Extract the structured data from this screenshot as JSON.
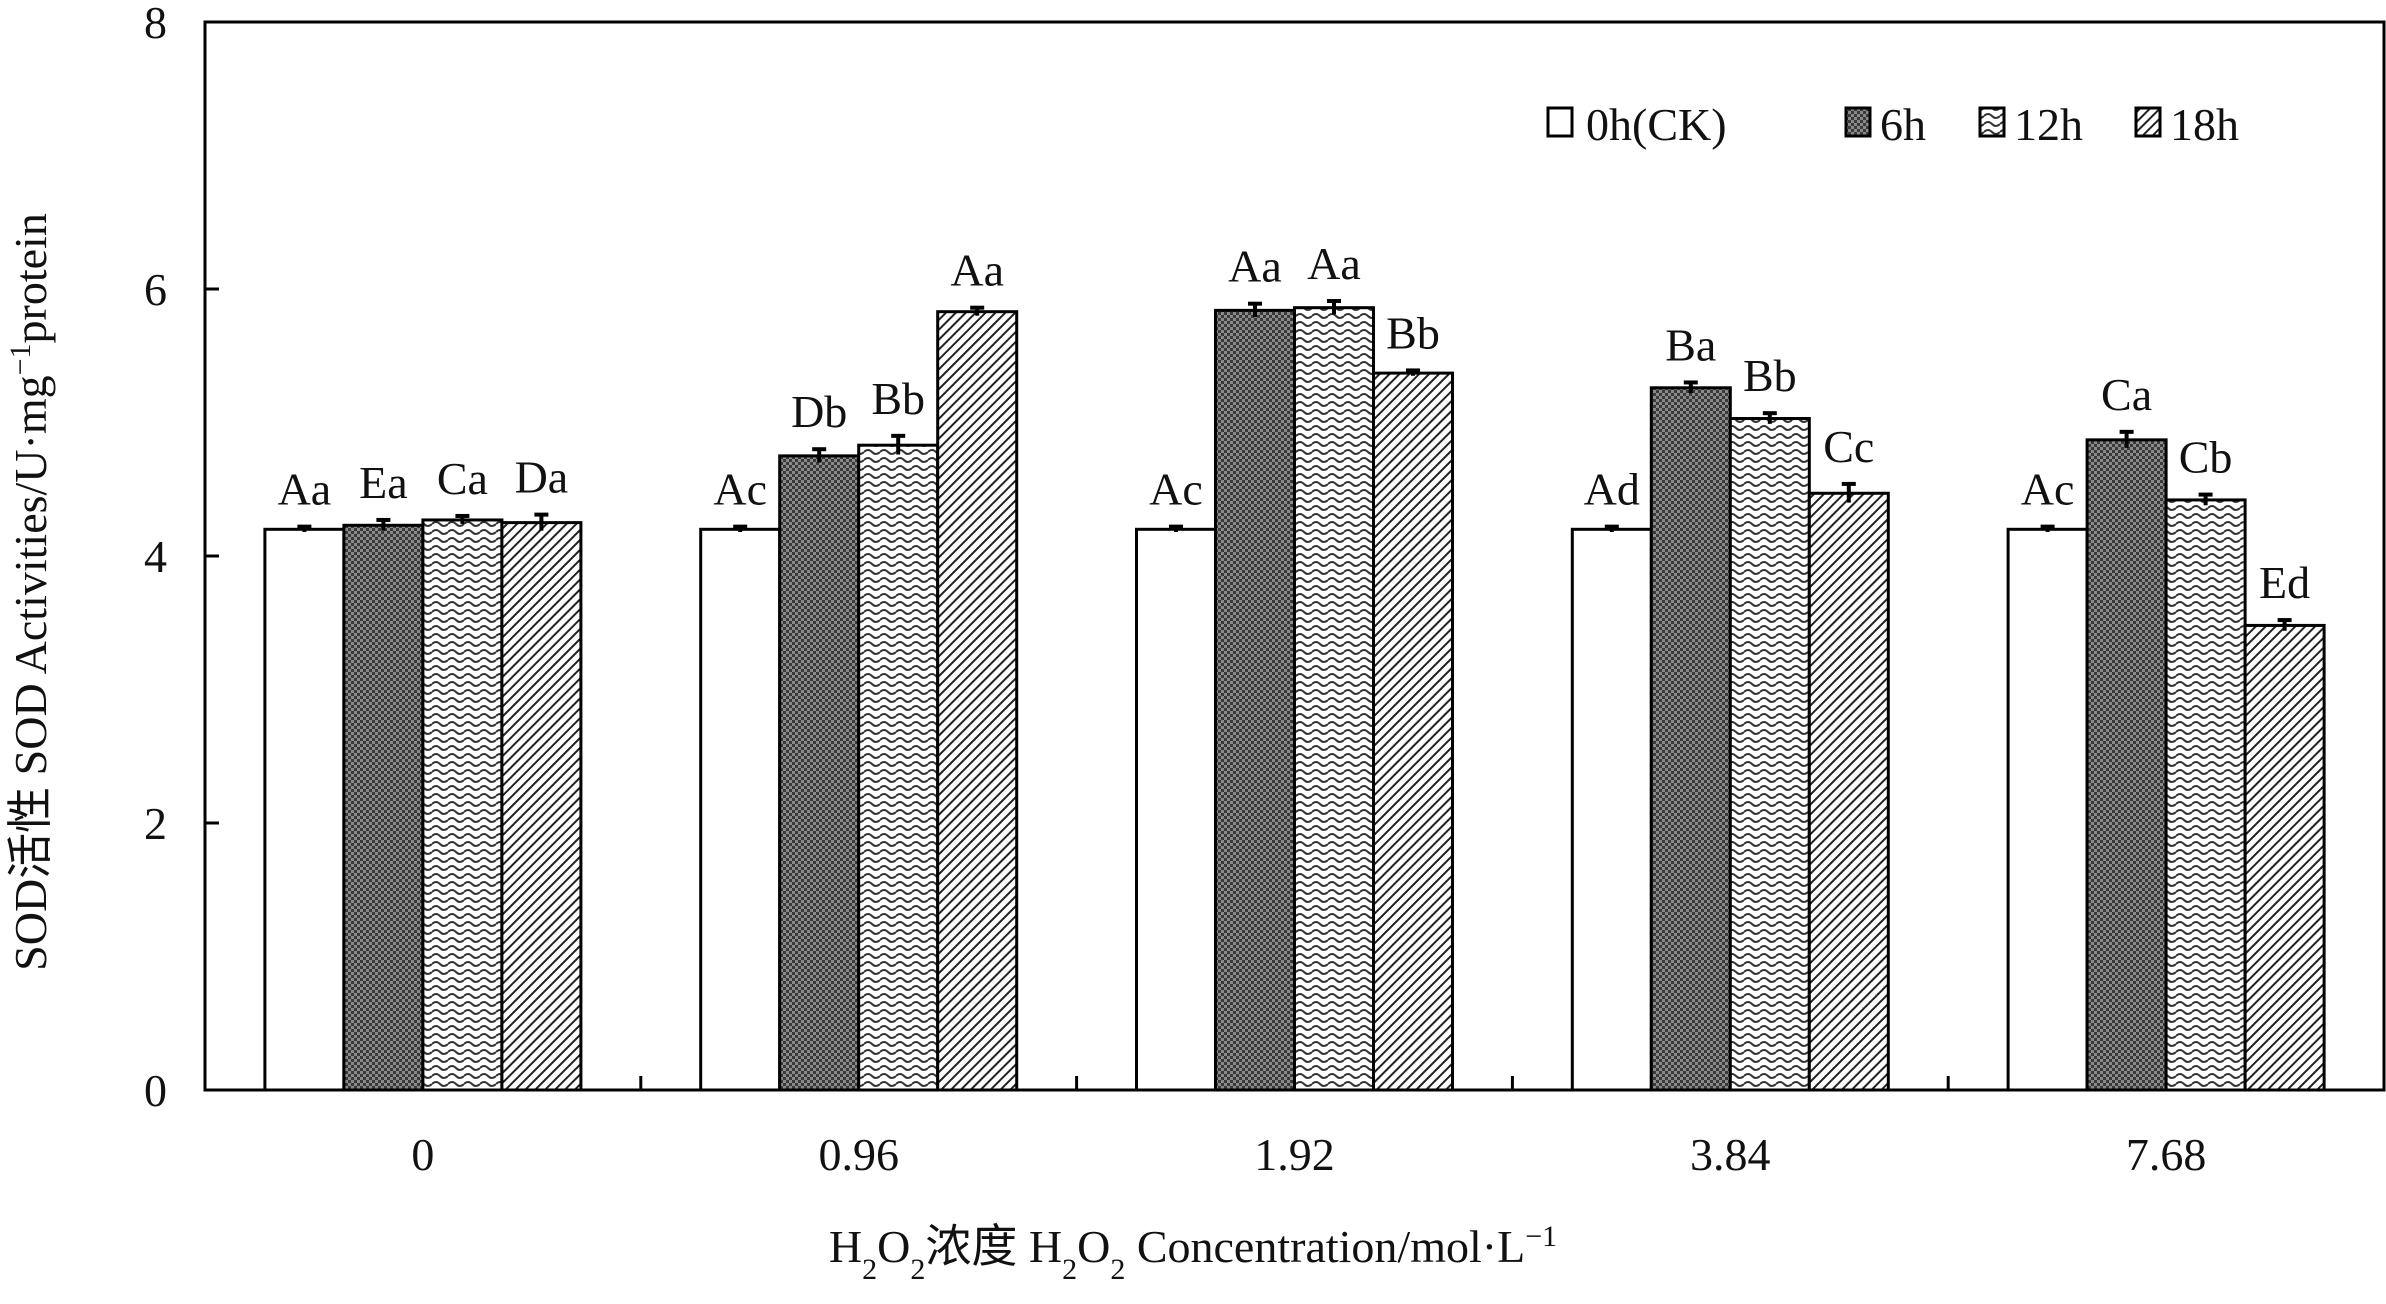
{
  "chart_data": {
    "type": "bar",
    "xlabel": {
      "prefix": "H",
      "sub1": "2",
      "mid1": "O",
      "sub2": "2",
      "cn": "浓度 H",
      "sub3": "2",
      "mid2": "O",
      "sub4": "2",
      "rest": " Concentration/mol·L",
      "sup": "−1"
    },
    "ylabel": {
      "text": "SOD活性 SOD Activities/U·mg",
      "sup": "−1",
      "rest": "protein"
    },
    "ylim": [
      0,
      8
    ],
    "yticks": [
      "0",
      "2",
      "4",
      "6",
      "8"
    ],
    "categories": [
      "0",
      "0.96",
      "1.92",
      "3.84",
      "7.68"
    ],
    "legend_position": "top-right",
    "series": [
      {
        "name": "0h(CK)",
        "pattern": "white",
        "values": [
          4.2,
          4.2,
          4.2,
          4.2,
          4.2
        ],
        "errors": [
          0.02,
          0.02,
          0.02,
          0.02,
          0.02
        ],
        "labels": [
          "Aa",
          "Ac",
          "Ac",
          "Ad",
          "Ac"
        ]
      },
      {
        "name": "6h",
        "pattern": "dots",
        "values": [
          4.23,
          4.75,
          5.84,
          5.26,
          4.87
        ],
        "errors": [
          0.04,
          0.05,
          0.05,
          0.04,
          0.06
        ],
        "labels": [
          "Ea",
          "Db",
          "Aa",
          "Ba",
          "Ca"
        ]
      },
      {
        "name": "12h",
        "pattern": "waves",
        "values": [
          4.27,
          4.83,
          5.86,
          5.03,
          4.42
        ],
        "errors": [
          0.03,
          0.07,
          0.05,
          0.04,
          0.04
        ],
        "labels": [
          "Ca",
          "Bb",
          "Aa",
          "Bb",
          "Cb"
        ]
      },
      {
        "name": "18h",
        "pattern": "diagonal",
        "values": [
          4.25,
          5.83,
          5.37,
          4.47,
          3.48
        ],
        "errors": [
          0.06,
          0.03,
          0.02,
          0.07,
          0.04
        ],
        "labels": [
          "Da",
          "Aa",
          "Bb",
          "Cc",
          "Ed"
        ]
      }
    ]
  }
}
